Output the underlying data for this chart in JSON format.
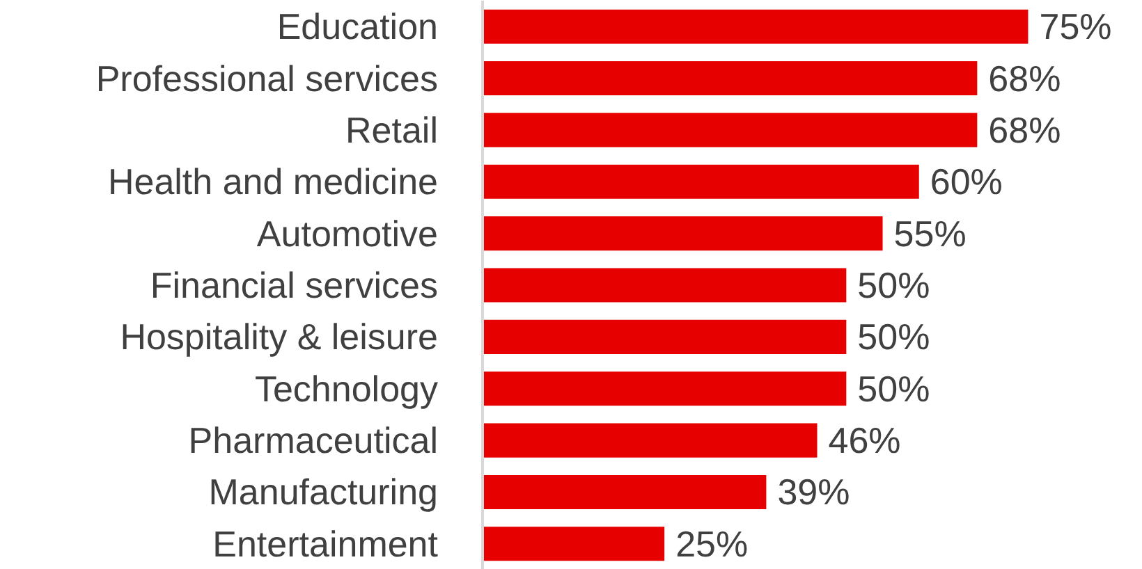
{
  "chart_data": {
    "type": "bar",
    "orientation": "horizontal",
    "data_labels": true,
    "categories": [
      "Education",
      "Professional services",
      "Retail",
      "Health and medicine",
      "Automotive",
      "Financial services",
      "Hospitality & leisure",
      "Technology",
      "Pharmaceutical",
      "Manufacturing",
      "Entertainment"
    ],
    "values": [
      75,
      68,
      68,
      60,
      55,
      50,
      50,
      50,
      46,
      39,
      25
    ],
    "value_labels": [
      "75%",
      "68%",
      "68%",
      "60%",
      "55%",
      "50%",
      "50%",
      "50%",
      "46%",
      "39%",
      "25%"
    ],
    "color": "#e60000"
  }
}
